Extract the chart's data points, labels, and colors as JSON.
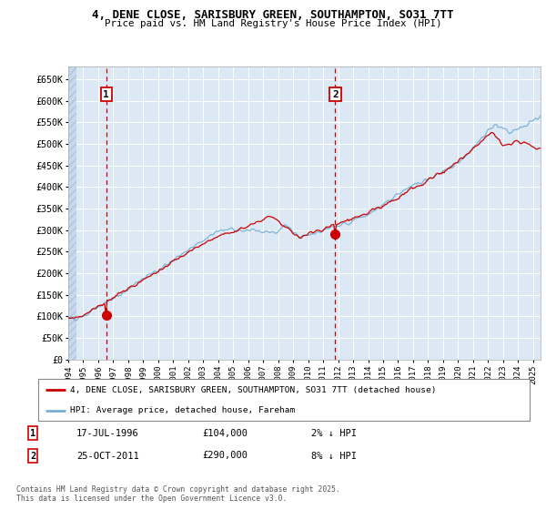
{
  "title_line1": "4, DENE CLOSE, SARISBURY GREEN, SOUTHAMPTON, SO31 7TT",
  "title_line2": "Price paid vs. HM Land Registry's House Price Index (HPI)",
  "background_color": "#dce9f5",
  "grid_color": "#ffffff",
  "red_line_color": "#cc0000",
  "blue_line_color": "#7ab0d4",
  "marker1_date": 1996.54,
  "marker1_value": 104000,
  "marker2_date": 2011.81,
  "marker2_value": 290000,
  "annotation1_label": "1",
  "annotation2_label": "2",
  "legend_label_red": "4, DENE CLOSE, SARISBURY GREEN, SOUTHAMPTON, SO31 7TT (detached house)",
  "legend_label_blue": "HPI: Average price, detached house, Fareham",
  "note1_date": "17-JUL-1996",
  "note1_price": "£104,000",
  "note1_hpi": "2% ↓ HPI",
  "note2_date": "25-OCT-2011",
  "note2_price": "£290,000",
  "note2_hpi": "8% ↓ HPI",
  "footer": "Contains HM Land Registry data © Crown copyright and database right 2025.\nThis data is licensed under the Open Government Licence v3.0.",
  "ylim": [
    0,
    680000
  ],
  "xlim_start": 1994.0,
  "xlim_end": 2025.5,
  "yticks": [
    0,
    50000,
    100000,
    150000,
    200000,
    250000,
    300000,
    350000,
    400000,
    450000,
    500000,
    550000,
    600000,
    650000
  ],
  "ytick_labels": [
    "£0",
    "£50K",
    "£100K",
    "£150K",
    "£200K",
    "£250K",
    "£300K",
    "£350K",
    "£400K",
    "£450K",
    "£500K",
    "£550K",
    "£600K",
    "£650K"
  ]
}
